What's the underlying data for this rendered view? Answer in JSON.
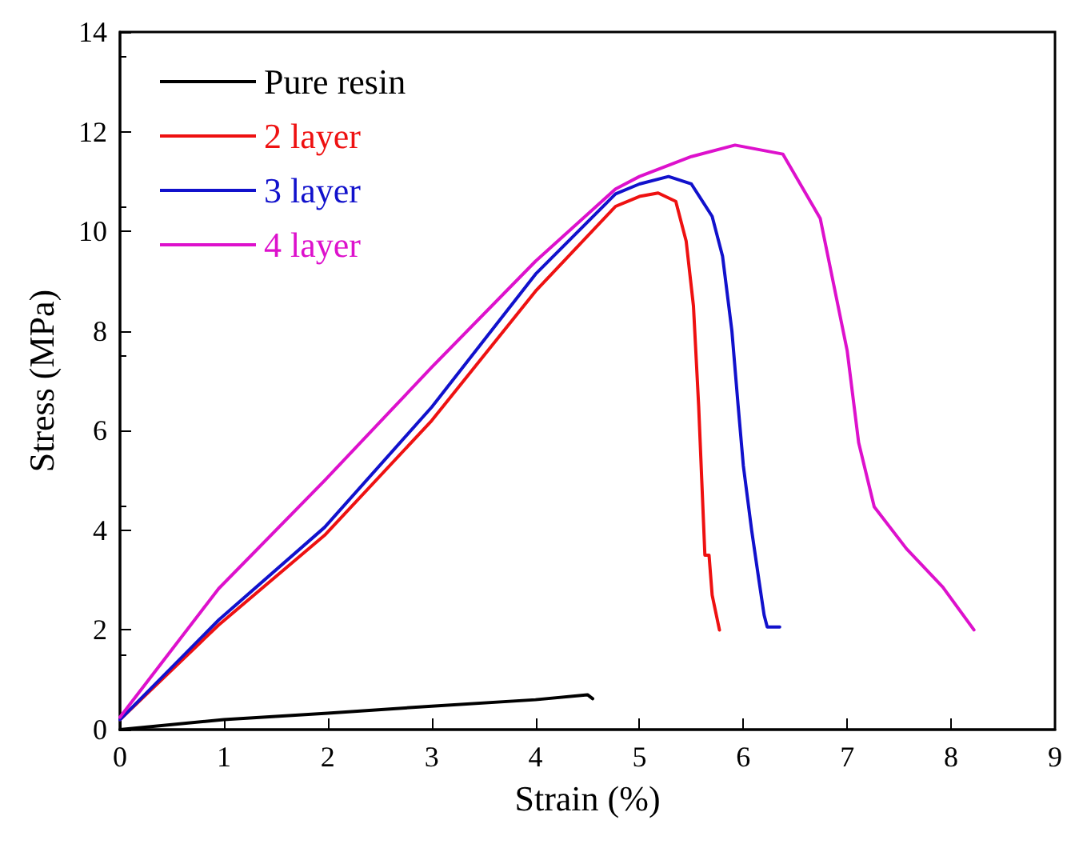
{
  "chart_data": {
    "type": "line",
    "xlabel": "Strain (%)",
    "ylabel": "Stress (MPa)",
    "xlim": [
      0,
      9
    ],
    "xticks": [
      0,
      1,
      2,
      3,
      4,
      5,
      6,
      7,
      8,
      9
    ],
    "ylim": [
      0,
      14
    ],
    "yticks": [
      0,
      2,
      4,
      6,
      8,
      10,
      12,
      14
    ],
    "legend": "top left",
    "marker": "none",
    "line_style": "solid",
    "series": [
      {
        "name": "Pure resin",
        "color": "#000000",
        "x": [
          0,
          1,
          2,
          3,
          4,
          4.5,
          4.55
        ],
        "values": [
          0,
          0.2,
          0.33,
          0.47,
          0.6,
          0.7,
          0.62
        ]
      },
      {
        "name": "2 layer",
        "color": "#ee1111",
        "x": [
          0,
          0.95,
          1.97,
          3,
          4,
          4.77,
          5,
          5.18,
          5.35,
          5.45,
          5.52,
          5.57,
          5.6,
          5.63,
          5.67,
          5.7,
          5.77
        ],
        "values": [
          0.2,
          2.1,
          3.9,
          6.2,
          8.8,
          10.5,
          10.7,
          10.77,
          10.6,
          9.8,
          8.5,
          6.5,
          5,
          3.5,
          3.5,
          2.7,
          2
        ]
      },
      {
        "name": "3 layer",
        "color": "#1111cc",
        "x": [
          0,
          0.95,
          1.97,
          3,
          4,
          4.77,
          5,
          5.28,
          5.5,
          5.7,
          5.8,
          5.89,
          5.95,
          6,
          6.08,
          6.15,
          6.2,
          6.23,
          6.35
        ],
        "values": [
          0.2,
          2.2,
          4.06,
          6.47,
          9.14,
          10.75,
          10.95,
          11.1,
          10.95,
          10.3,
          9.5,
          8,
          6.5,
          5.3,
          4,
          3,
          2.3,
          2.06,
          2.06
        ]
      },
      {
        "name": "4 layer",
        "color": "#dd11cc",
        "x": [
          0,
          0.95,
          1.97,
          3,
          4,
          4.77,
          5,
          5.5,
          5.92,
          6.38,
          6.74,
          7,
          7.11,
          7.26,
          7.57,
          7.92,
          8.22
        ],
        "values": [
          0.25,
          2.83,
          5,
          7.27,
          9.4,
          10.85,
          11.1,
          11.5,
          11.73,
          11.55,
          10.26,
          7.6,
          5.76,
          4.47,
          3.63,
          2.86,
          2
        ]
      }
    ]
  }
}
